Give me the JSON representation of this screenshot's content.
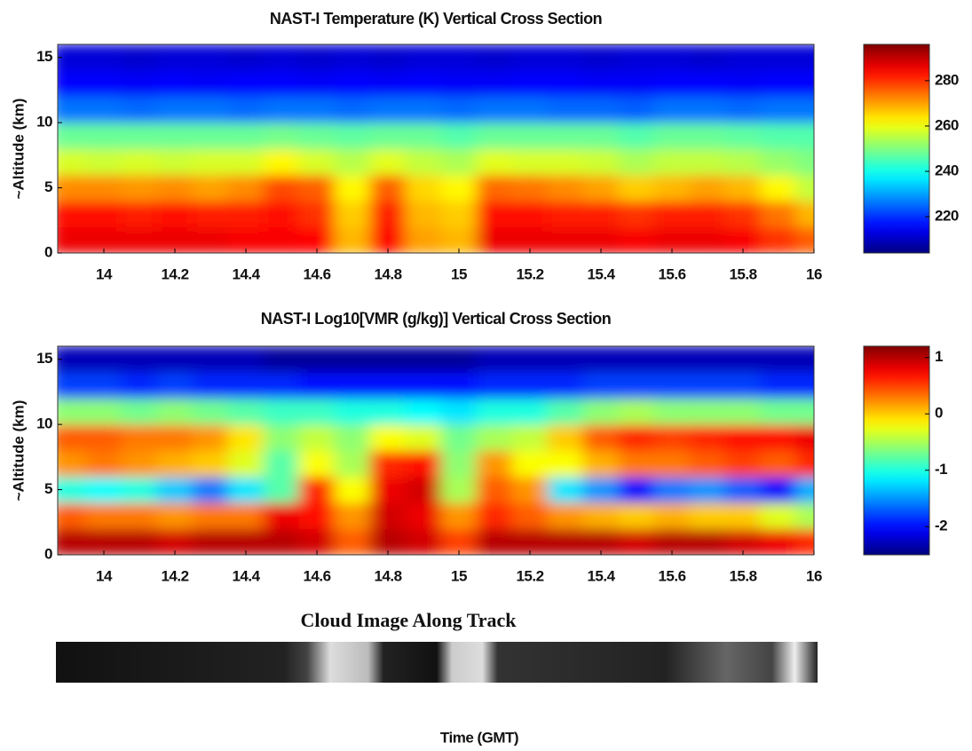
{
  "chart_data": [
    {
      "type": "heatmap",
      "title": "NAST-I Temperature (K) Vertical Cross Section",
      "ylabel": "~Altitude (km)",
      "x": [
        13.9,
        14.0,
        14.1,
        14.2,
        14.3,
        14.4,
        14.5,
        14.6,
        14.7,
        14.8,
        14.9,
        15.0,
        15.1,
        15.2,
        15.3,
        15.4,
        15.5,
        15.6,
        15.7,
        15.8,
        15.9,
        16.0
      ],
      "y": [
        1,
        3,
        5,
        7,
        9,
        11,
        13,
        15
      ],
      "z": [
        [
          286,
          286,
          286,
          286,
          286,
          285,
          285,
          284,
          268,
          284,
          270,
          268,
          286,
          286,
          286,
          286,
          285,
          286,
          286,
          285,
          280,
          276
        ],
        [
          283,
          283,
          282,
          283,
          282,
          282,
          283,
          280,
          266,
          282,
          268,
          266,
          283,
          283,
          282,
          282,
          280,
          282,
          282,
          280,
          274,
          268
        ],
        [
          272,
          272,
          271,
          272,
          270,
          272,
          278,
          276,
          262,
          276,
          265,
          262,
          275,
          274,
          272,
          270,
          266,
          268,
          270,
          268,
          262,
          256
        ],
        [
          258,
          257,
          258,
          257,
          258,
          258,
          262,
          258,
          255,
          259,
          256,
          254,
          259,
          258,
          258,
          257,
          254,
          256,
          256,
          255,
          252,
          250
        ],
        [
          248,
          248,
          248,
          248,
          248,
          248,
          249,
          248,
          247,
          248,
          248,
          246,
          248,
          248,
          248,
          248,
          246,
          248,
          248,
          247,
          246,
          246
        ],
        [
          226,
          226,
          225,
          226,
          226,
          225,
          226,
          226,
          225,
          226,
          226,
          225,
          226,
          226,
          225,
          225,
          224,
          226,
          226,
          225,
          226,
          226
        ],
        [
          216,
          216,
          215,
          216,
          215,
          216,
          216,
          215,
          216,
          215,
          216,
          215,
          215,
          216,
          216,
          215,
          215,
          216,
          216,
          215,
          216,
          216
        ],
        [
          212,
          212,
          211,
          212,
          212,
          211,
          212,
          211,
          212,
          211,
          212,
          212,
          211,
          212,
          212,
          211,
          212,
          212,
          211,
          212,
          212,
          212
        ]
      ],
      "xlim": [
        13.87,
        16
      ],
      "ylim": [
        0,
        16
      ],
      "xticks": [
        14,
        14.2,
        14.4,
        14.6,
        14.8,
        15,
        15.2,
        15.4,
        15.6,
        15.8,
        16
      ],
      "yticks": [
        0,
        5,
        10,
        15
      ],
      "colormap": "jet",
      "clim": [
        204,
        296
      ],
      "cticks": [
        220,
        240,
        260,
        280
      ]
    },
    {
      "type": "heatmap",
      "title": "NAST-I Log10[VMR (g/kg)] Vertical Cross Section",
      "ylabel": "~Altitude (km)",
      "x": [
        13.9,
        14.0,
        14.1,
        14.2,
        14.3,
        14.4,
        14.5,
        14.6,
        14.7,
        14.8,
        14.9,
        15.0,
        15.1,
        15.2,
        15.3,
        15.4,
        15.5,
        15.6,
        15.7,
        15.8,
        15.9,
        16.0
      ],
      "y": [
        1,
        3,
        5,
        7,
        9,
        11,
        13,
        15
      ],
      "z": [
        [
          1.0,
          1.0,
          1.0,
          0.9,
          1.0,
          1.0,
          1.0,
          0.9,
          0.4,
          1.0,
          0.9,
          0.5,
          1.0,
          1.0,
          1.0,
          1.0,
          0.9,
          1.0,
          1.0,
          0.9,
          0.8,
          0.6
        ],
        [
          0.4,
          0.3,
          0.3,
          0.2,
          0.3,
          0.3,
          0.8,
          0.7,
          0.2,
          0.9,
          0.8,
          0.2,
          0.6,
          0.4,
          0.2,
          0.1,
          0.0,
          0.1,
          0.0,
          0.0,
          -0.3,
          -0.5
        ],
        [
          -1.0,
          -1.1,
          -1.0,
          -1.3,
          -1.6,
          -1.2,
          -0.8,
          0.6,
          -0.2,
          0.8,
          0.9,
          -0.5,
          0.4,
          0.2,
          -1.2,
          -1.5,
          -2.0,
          -1.6,
          -1.5,
          -1.7,
          -2.0,
          -1.4
        ],
        [
          0.2,
          0.3,
          0.2,
          0.1,
          0.0,
          -0.3,
          -0.8,
          -0.2,
          -0.5,
          0.6,
          0.7,
          -0.6,
          0.2,
          -0.2,
          -0.2,
          0.1,
          0.3,
          0.3,
          0.4,
          0.5,
          0.4,
          0.6
        ],
        [
          0.4,
          0.4,
          0.3,
          0.3,
          0.2,
          -0.1,
          -0.6,
          -0.4,
          -0.6,
          -0.2,
          -0.3,
          -0.7,
          -0.5,
          -0.4,
          0.0,
          0.4,
          0.6,
          0.5,
          0.6,
          0.7,
          0.7,
          0.8
        ],
        [
          -0.6,
          -0.6,
          -0.7,
          -0.6,
          -0.7,
          -0.8,
          -0.9,
          -0.9,
          -1.0,
          -1.0,
          -1.1,
          -1.2,
          -1.0,
          -1.0,
          -0.8,
          -0.6,
          -0.5,
          -0.6,
          -0.6,
          -0.6,
          -0.7,
          -0.7
        ],
        [
          -1.8,
          -1.8,
          -1.9,
          -1.8,
          -1.9,
          -1.9,
          -1.9,
          -2.0,
          -2.0,
          -2.0,
          -2.0,
          -2.0,
          -1.9,
          -1.9,
          -1.9,
          -1.8,
          -1.8,
          -1.8,
          -1.8,
          -1.8,
          -1.9,
          -1.9
        ],
        [
          -2.3,
          -2.3,
          -2.3,
          -2.3,
          -2.3,
          -2.3,
          -2.4,
          -2.4,
          -2.4,
          -2.4,
          -2.4,
          -2.4,
          -2.3,
          -2.3,
          -2.3,
          -2.3,
          -2.3,
          -2.3,
          -2.3,
          -2.3,
          -2.3,
          -2.3
        ]
      ],
      "xlim": [
        13.87,
        16
      ],
      "ylim": [
        0,
        16
      ],
      "xticks": [
        14,
        14.2,
        14.4,
        14.6,
        14.8,
        15,
        15.2,
        15.4,
        15.6,
        15.8,
        16
      ],
      "yticks": [
        0,
        5,
        10,
        15
      ],
      "colormap": "jet",
      "clim": [
        -2.5,
        1.2
      ],
      "cticks": [
        -2,
        -1,
        0,
        1
      ]
    }
  ],
  "cloud_image": {
    "title": "Cloud Image Along Track"
  },
  "xlabel": "Time (GMT)"
}
